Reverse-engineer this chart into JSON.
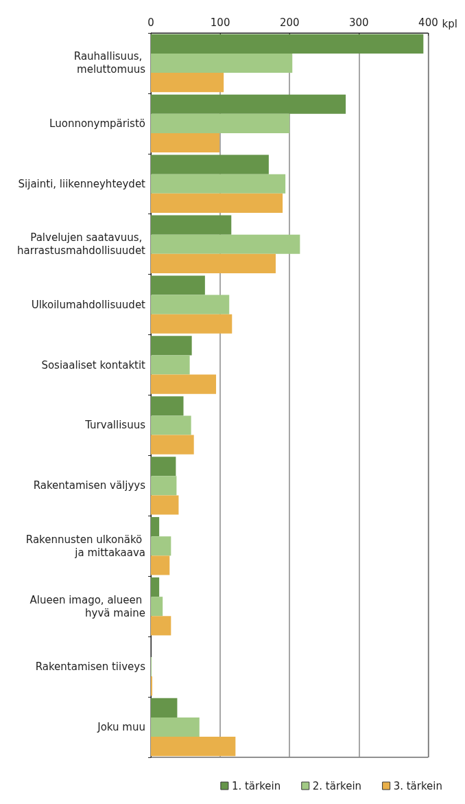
{
  "chart_data": {
    "type": "bar",
    "orientation": "horizontal",
    "xlabel": "kpl",
    "categories": [
      "Rauhallisuus, meluttomuus",
      "Luonnonympäristö",
      "Sijainti, liikenneyhteydet",
      "Palvelujen saatavuus, harrastusmahdollisuudet",
      "Ulkoilumahdollisuudet",
      "Sosiaaliset kontaktit",
      "Turvallisuus",
      "Rakentamisen väljyys",
      "Rakennusten ulkonäkö ja mittakaava",
      "Alueen imago, alueen hyvä maine",
      "Rakentamisen tiiveys",
      "Joku muu"
    ],
    "series": [
      {
        "name": "1. tärkein",
        "color": "#66954a",
        "values": [
          393,
          281,
          170,
          116,
          78,
          59,
          47,
          36,
          12,
          12,
          0,
          38
        ]
      },
      {
        "name": "2. tärkein",
        "color": "#a2ca85",
        "values": [
          204,
          200,
          194,
          215,
          113,
          56,
          58,
          37,
          29,
          17,
          1,
          70
        ]
      },
      {
        "name": "3. tärkein",
        "color": "#e9b04a",
        "values": [
          105,
          99,
          190,
          180,
          117,
          94,
          62,
          40,
          27,
          29,
          2,
          122
        ]
      }
    ],
    "xlim": [
      0,
      400
    ],
    "xticks": [
      0,
      100,
      200,
      300,
      400
    ],
    "grid": "x",
    "legend": "bottom"
  }
}
